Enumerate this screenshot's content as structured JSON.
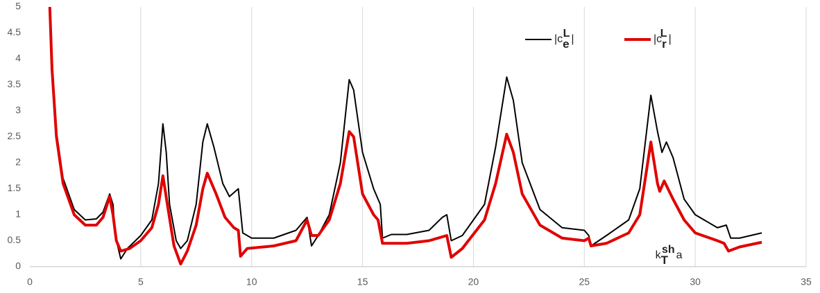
{
  "chart_data": {
    "type": "line",
    "xlim": [
      0,
      35
    ],
    "xticks": [
      0,
      5,
      10,
      15,
      20,
      25,
      30,
      35
    ],
    "ylim": [
      0,
      5
    ],
    "yticks": [
      0,
      0.5,
      1,
      1.5,
      2,
      2.5,
      3,
      3.5,
      4,
      4.5,
      5
    ],
    "grid": "x",
    "legend": "top-right",
    "annotation": {
      "text": "k",
      "sub": "T",
      "sup": "sh",
      "after": "a",
      "x": 28.2,
      "y": 0.32
    },
    "series": [
      {
        "name": "|c",
        "sub": "e",
        "sup": "L",
        "close": "|",
        "color": "#000000",
        "x": [
          0.9,
          1.0,
          1.2,
          1.5,
          2.0,
          2.5,
          3.0,
          3.3,
          3.6,
          3.75,
          3.85,
          4.1,
          4.4,
          5,
          5.5,
          5.8,
          6.0,
          6.15,
          6.3,
          6.6,
          6.8,
          7.1,
          7.5,
          7.8,
          8.0,
          8.3,
          8.7,
          9.0,
          9.4,
          9.6,
          10,
          11,
          12,
          12.5,
          12.7,
          13,
          13.5,
          14,
          14.4,
          14.6,
          15,
          15.5,
          15.8,
          15.9,
          16.3,
          17,
          18,
          18.6,
          18.8,
          19.0,
          19.5,
          20.5,
          21,
          21.5,
          21.8,
          22.2,
          23,
          24,
          25,
          25.2,
          25.3,
          26,
          27,
          27.5,
          28,
          28.3,
          28.5,
          28.7,
          29,
          29.5,
          30,
          31,
          31.4,
          31.6,
          32,
          33
        ],
        "values": [
          5,
          3.8,
          2.6,
          1.7,
          1.1,
          0.9,
          0.92,
          1.05,
          1.4,
          1.2,
          0.6,
          0.15,
          0.35,
          0.6,
          0.9,
          1.6,
          2.75,
          2.2,
          1.2,
          0.5,
          0.35,
          0.5,
          1.2,
          2.4,
          2.75,
          2.3,
          1.6,
          1.35,
          1.5,
          0.65,
          0.55,
          0.55,
          0.7,
          0.95,
          0.4,
          0.6,
          1.0,
          2.0,
          3.6,
          3.4,
          2.2,
          1.5,
          1.2,
          0.55,
          0.62,
          0.62,
          0.7,
          0.95,
          1.0,
          0.5,
          0.6,
          1.2,
          2.3,
          3.65,
          3.2,
          2.0,
          1.1,
          0.75,
          0.7,
          0.6,
          0.4,
          0.6,
          0.9,
          1.5,
          3.3,
          2.6,
          2.2,
          2.4,
          2.1,
          1.3,
          1.0,
          0.75,
          0.8,
          0.55,
          0.55,
          0.65
        ]
      },
      {
        "name": "|c",
        "sub": "r",
        "sup": "L",
        "close": "|",
        "color": "#e00000",
        "x": [
          0.9,
          1.0,
          1.2,
          1.5,
          2,
          2.5,
          3,
          3.3,
          3.6,
          3.75,
          3.9,
          4.1,
          4.5,
          5,
          5.5,
          5.8,
          6,
          6.2,
          6.5,
          6.8,
          7.1,
          7.5,
          7.8,
          8,
          8.4,
          8.8,
          9.2,
          9.4,
          9.5,
          9.8,
          11,
          12,
          12.5,
          12.7,
          13,
          13.5,
          14,
          14.4,
          14.6,
          15,
          15.5,
          15.7,
          15.9,
          17,
          18,
          18.8,
          19,
          19.5,
          20.5,
          21,
          21.5,
          21.8,
          22.2,
          23,
          24,
          25,
          25.2,
          25.3,
          26,
          27,
          27.5,
          28,
          28.3,
          28.4,
          28.6,
          29,
          29.5,
          30,
          31,
          31.3,
          31.5,
          32,
          33
        ],
        "values": [
          5,
          3.8,
          2.5,
          1.6,
          1.0,
          0.8,
          0.8,
          0.95,
          1.35,
          1.0,
          0.5,
          0.3,
          0.35,
          0.5,
          0.75,
          1.2,
          1.75,
          1.2,
          0.4,
          0.05,
          0.3,
          0.8,
          1.5,
          1.8,
          1.4,
          0.95,
          0.75,
          0.7,
          0.2,
          0.35,
          0.4,
          0.5,
          0.9,
          0.6,
          0.6,
          0.9,
          1.6,
          2.6,
          2.5,
          1.4,
          1.0,
          0.9,
          0.45,
          0.45,
          0.5,
          0.6,
          0.18,
          0.35,
          0.9,
          1.6,
          2.55,
          2.2,
          1.4,
          0.8,
          0.55,
          0.5,
          0.55,
          0.4,
          0.45,
          0.65,
          1.0,
          2.4,
          1.6,
          1.45,
          1.65,
          1.3,
          0.9,
          0.65,
          0.5,
          0.45,
          0.3,
          0.38,
          0.47
        ]
      }
    ]
  }
}
